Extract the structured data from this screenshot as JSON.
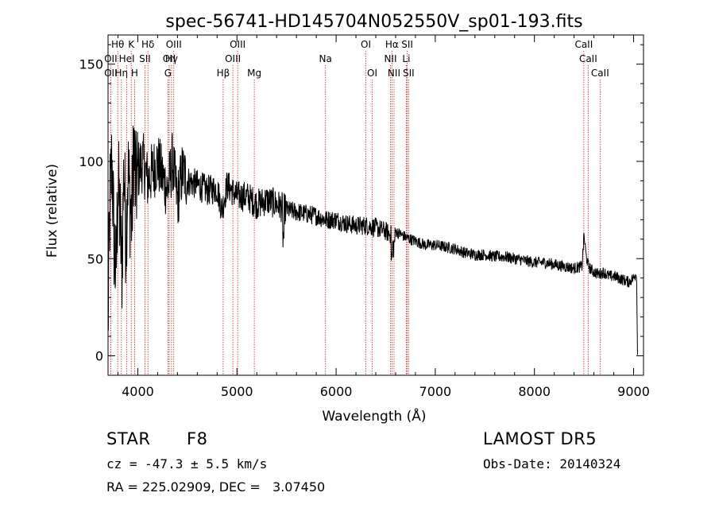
{
  "chart_data": {
    "type": "line",
    "title": "spec-56741-HD145704N052550V_sp01-193.fits",
    "xlabel": "Wavelength (Å)",
    "ylabel": "Flux (relative)",
    "xlim": [
      3700,
      9100
    ],
    "ylim": [
      -10,
      165
    ],
    "x_ticks": [
      4000,
      5000,
      6000,
      7000,
      8000,
      9000
    ],
    "y_ticks": [
      0,
      50,
      100,
      150
    ],
    "grid": false,
    "series": [
      {
        "x": [
          3700,
          3720,
          3740,
          3760,
          3780,
          3800,
          3820,
          3840,
          3860,
          3880,
          3900,
          3920,
          3940,
          3960,
          3980,
          4000,
          4050,
          4100,
          4150,
          4200,
          4250,
          4300,
          4350,
          4400,
          4450,
          4500,
          4600,
          4700,
          4800,
          4850,
          4900,
          5000,
          5100,
          5200,
          5300,
          5400,
          5500,
          5600,
          5700,
          5800,
          5900,
          6000,
          6100,
          6200,
          6300,
          6400,
          6500,
          6560,
          6580,
          6600,
          6700,
          6800,
          6900,
          7000,
          7100,
          7200,
          7300,
          7400,
          7500,
          7600,
          7700,
          7800,
          7900,
          8000,
          8100,
          8200,
          8300,
          8400,
          8480,
          8500,
          8520,
          8540,
          8560,
          8600,
          8650,
          8700,
          8750,
          8800,
          8850,
          8900,
          8950,
          9000,
          9030,
          9040
        ],
        "y": [
          15,
          80,
          100,
          60,
          40,
          90,
          70,
          45,
          100,
          60,
          95,
          80,
          70,
          110,
          85,
          95,
          100,
          90,
          95,
          100,
          92,
          85,
          100,
          80,
          95,
          90,
          88,
          85,
          86,
          75,
          88,
          82,
          82,
          78,
          80,
          78,
          75,
          74,
          73,
          72,
          70,
          70,
          68,
          67,
          67,
          66,
          64,
          62,
          55,
          64,
          61,
          59,
          57,
          57,
          56,
          55,
          53,
          52,
          52,
          51,
          51,
          50,
          49,
          48,
          48,
          47,
          46,
          45,
          46,
          62,
          52,
          47,
          45,
          43,
          42,
          43,
          41,
          41,
          40,
          39,
          38,
          40,
          43,
          0
        ]
      }
    ],
    "lines": [
      {
        "label": "Hθ",
        "x": 3798,
        "row": 0
      },
      {
        "label": "OII",
        "x": 3727,
        "row": 1
      },
      {
        "label": "OII",
        "x": 3727,
        "row": 2
      },
      {
        "label": "Hη",
        "x": 3835,
        "row": 2
      },
      {
        "label": "HeI",
        "x": 3889,
        "row": 1
      },
      {
        "label": "K",
        "x": 3934,
        "row": 0
      },
      {
        "label": "H",
        "x": 3968,
        "row": 2
      },
      {
        "label": "SII",
        "x": 4072,
        "row": 1
      },
      {
        "label": "Hδ",
        "x": 4102,
        "row": 0
      },
      {
        "label": "OIII",
        "x": 4363,
        "row": 0
      },
      {
        "label": "OII",
        "x": 4317,
        "row": 1
      },
      {
        "label": "Hγ",
        "x": 4340,
        "row": 1
      },
      {
        "label": "G",
        "x": 4304,
        "row": 2
      },
      {
        "label": "Hβ",
        "x": 4861,
        "row": 2
      },
      {
        "label": "OIII",
        "x": 5007,
        "row": 0
      },
      {
        "label": "OIII",
        "x": 4959,
        "row": 1
      },
      {
        "label": "Mg",
        "x": 5175,
        "row": 2
      },
      {
        "label": "Na",
        "x": 5893,
        "row": 1
      },
      {
        "label": "OI",
        "x": 6300,
        "row": 0
      },
      {
        "label": "OI",
        "x": 6364,
        "row": 2
      },
      {
        "label": "Hα",
        "x": 6563,
        "row": 0
      },
      {
        "label": "NII",
        "x": 6548,
        "row": 1
      },
      {
        "label": "NII",
        "x": 6584,
        "row": 2
      },
      {
        "label": "SII",
        "x": 6717,
        "row": 0
      },
      {
        "label": "Li",
        "x": 6708,
        "row": 1
      },
      {
        "label": "SII",
        "x": 6731,
        "row": 2
      },
      {
        "label": "CaII",
        "x": 8498,
        "row": 0
      },
      {
        "label": "CaII",
        "x": 8542,
        "row": 1
      },
      {
        "label": "CaII",
        "x": 8662,
        "row": 2
      }
    ],
    "line_color": "#cc2222"
  },
  "info": {
    "object_type": "STAR",
    "subclass": "F8",
    "survey": "LAMOST DR5",
    "cz": "cz = -47.3 ± 5.5 km/s",
    "obs_date": "Obs-Date: 20140324",
    "coords": "RA = 225.02909, DEC =   3.07450"
  }
}
